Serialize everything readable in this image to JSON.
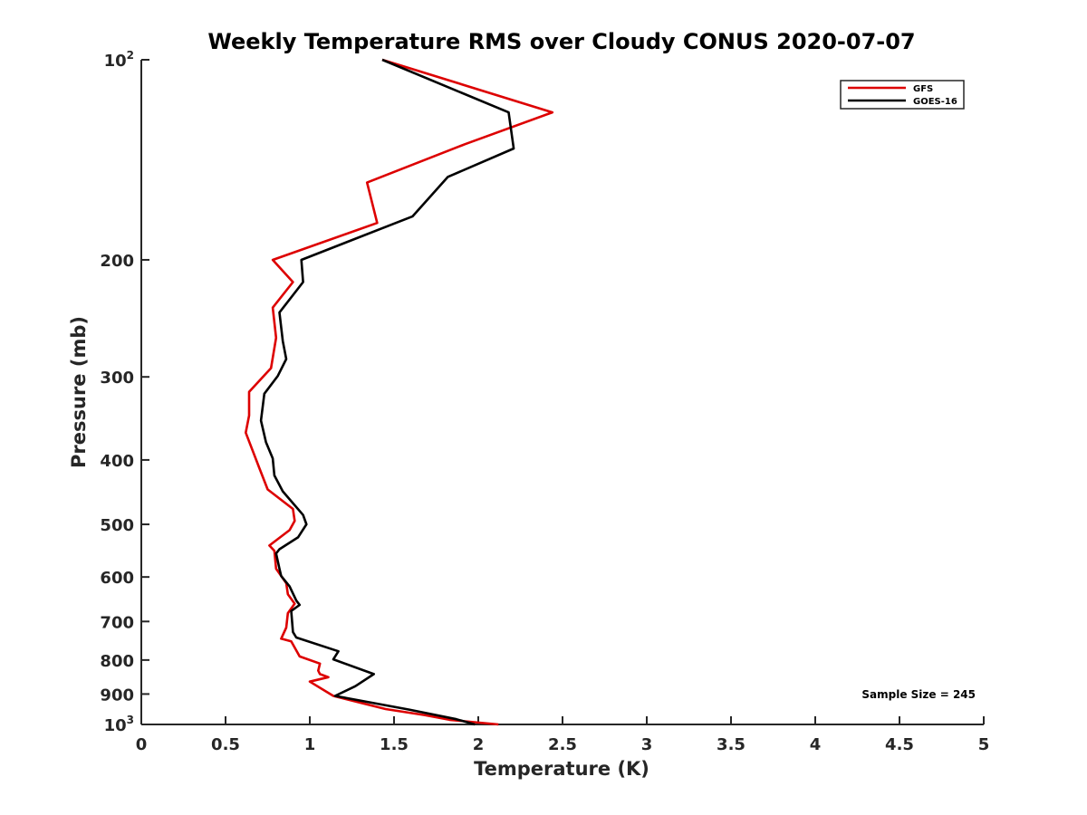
{
  "chart_data": {
    "type": "line",
    "title": "Weekly Temperature RMS over Cloudy CONUS 2020-07-07",
    "xlabel": "Temperature (K)",
    "ylabel": "Pressure (mb)",
    "xlim": [
      0,
      5
    ],
    "ylim": [
      100,
      1000
    ],
    "y_scale": "log",
    "y_reversed": true,
    "x_ticks": [
      0,
      0.5,
      1,
      1.5,
      2,
      2.5,
      3,
      3.5,
      4,
      4.5,
      5
    ],
    "x_tick_labels": [
      "0",
      "0.5",
      "1",
      "1.5",
      "2",
      "2.5",
      "3",
      "3.5",
      "4",
      "4.5",
      "5"
    ],
    "y_ticks": [
      {
        "value": 100,
        "base": "10",
        "exp": "2"
      },
      {
        "value": 200,
        "label": "200"
      },
      {
        "value": 300,
        "label": "300"
      },
      {
        "value": 400,
        "label": "400"
      },
      {
        "value": 500,
        "label": "500"
      },
      {
        "value": 600,
        "label": "600"
      },
      {
        "value": 700,
        "label": "700"
      },
      {
        "value": 800,
        "label": "800"
      },
      {
        "value": 900,
        "label": "900"
      },
      {
        "value": 1000,
        "base": "10",
        "exp": "3"
      }
    ],
    "grid": false,
    "legend_position": "top-right",
    "annotation": "Sample Size = 245",
    "series": [
      {
        "name": "GFS",
        "color": "#dd0000",
        "points": [
          [
            1.43,
            100
          ],
          [
            2.44,
            120
          ],
          [
            1.92,
            134
          ],
          [
            1.34,
            153
          ],
          [
            1.4,
            176
          ],
          [
            0.78,
            200
          ],
          [
            0.9,
            216
          ],
          [
            0.78,
            236
          ],
          [
            0.8,
            262
          ],
          [
            0.77,
            291
          ],
          [
            0.64,
            316
          ],
          [
            0.64,
            343
          ],
          [
            0.62,
            364
          ],
          [
            0.7,
            411
          ],
          [
            0.75,
            443
          ],
          [
            0.9,
            474
          ],
          [
            0.91,
            494
          ],
          [
            0.88,
            510
          ],
          [
            0.76,
            538
          ],
          [
            0.79,
            548
          ],
          [
            0.8,
            583
          ],
          [
            0.86,
            613
          ],
          [
            0.87,
            637
          ],
          [
            0.91,
            658
          ],
          [
            0.87,
            680
          ],
          [
            0.86,
            715
          ],
          [
            0.83,
            743
          ],
          [
            0.89,
            750
          ],
          [
            0.94,
            790
          ],
          [
            1.06,
            810
          ],
          [
            1.05,
            830
          ],
          [
            1.06,
            840
          ],
          [
            1.11,
            849
          ],
          [
            1.0,
            862
          ],
          [
            1.14,
            906
          ],
          [
            1.45,
            948
          ],
          [
            1.68,
            968
          ],
          [
            1.83,
            984
          ],
          [
            2.12,
            1000
          ]
        ]
      },
      {
        "name": "GOES-16",
        "color": "#000000",
        "points": [
          [
            1.43,
            100
          ],
          [
            2.18,
            120
          ],
          [
            2.21,
            136
          ],
          [
            1.82,
            150
          ],
          [
            1.61,
            172
          ],
          [
            0.95,
            200
          ],
          [
            0.96,
            216
          ],
          [
            0.82,
            240
          ],
          [
            0.84,
            265
          ],
          [
            0.86,
            282
          ],
          [
            0.81,
            299
          ],
          [
            0.73,
            318
          ],
          [
            0.71,
            349
          ],
          [
            0.74,
            376
          ],
          [
            0.78,
            398
          ],
          [
            0.79,
            422
          ],
          [
            0.84,
            446
          ],
          [
            0.96,
            484
          ],
          [
            0.98,
            500
          ],
          [
            0.93,
            523
          ],
          [
            0.82,
            545
          ],
          [
            0.8,
            553
          ],
          [
            0.82,
            583
          ],
          [
            0.83,
            598
          ],
          [
            0.88,
            620
          ],
          [
            0.92,
            651
          ],
          [
            0.94,
            661
          ],
          [
            0.89,
            675
          ],
          [
            0.9,
            726
          ],
          [
            0.92,
            740
          ],
          [
            1.17,
            776
          ],
          [
            1.14,
            798
          ],
          [
            1.38,
            840
          ],
          [
            1.27,
            876
          ],
          [
            1.15,
            906
          ],
          [
            1.59,
            950
          ],
          [
            1.87,
            982
          ],
          [
            1.98,
            1000
          ]
        ]
      }
    ]
  }
}
